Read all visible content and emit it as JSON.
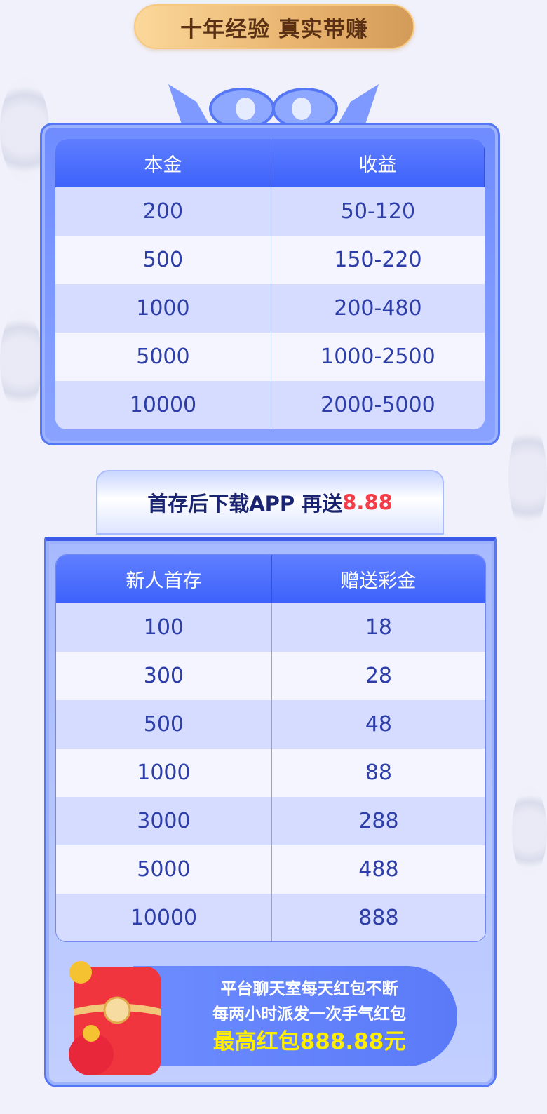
{
  "header": {
    "title": "十年经验 真实带赚"
  },
  "table1": {
    "columns": [
      "本金",
      "收益"
    ],
    "rows": [
      [
        "200",
        "50-120"
      ],
      [
        "500",
        "150-220"
      ],
      [
        "1000",
        "200-480"
      ],
      [
        "5000",
        "1000-2500"
      ],
      [
        "10000",
        "2000-5000"
      ]
    ]
  },
  "banner": {
    "text": "首存后下载APP 再送",
    "highlight": "8.88"
  },
  "table2": {
    "columns": [
      "新人首存",
      "赠送彩金"
    ],
    "rows": [
      [
        "100",
        "18"
      ],
      [
        "300",
        "28"
      ],
      [
        "500",
        "48"
      ],
      [
        "1000",
        "88"
      ],
      [
        "3000",
        "288"
      ],
      [
        "5000",
        "488"
      ],
      [
        "10000",
        "888"
      ]
    ]
  },
  "promo": {
    "line1": "平台聊天室每天红包不断",
    "line2": "每两小时派发一次手气红包",
    "line3": "最高红包888.88元"
  },
  "colors": {
    "primary": "#3d62fb",
    "highlight": "#f53d4a",
    "gold": "#ffee00"
  }
}
